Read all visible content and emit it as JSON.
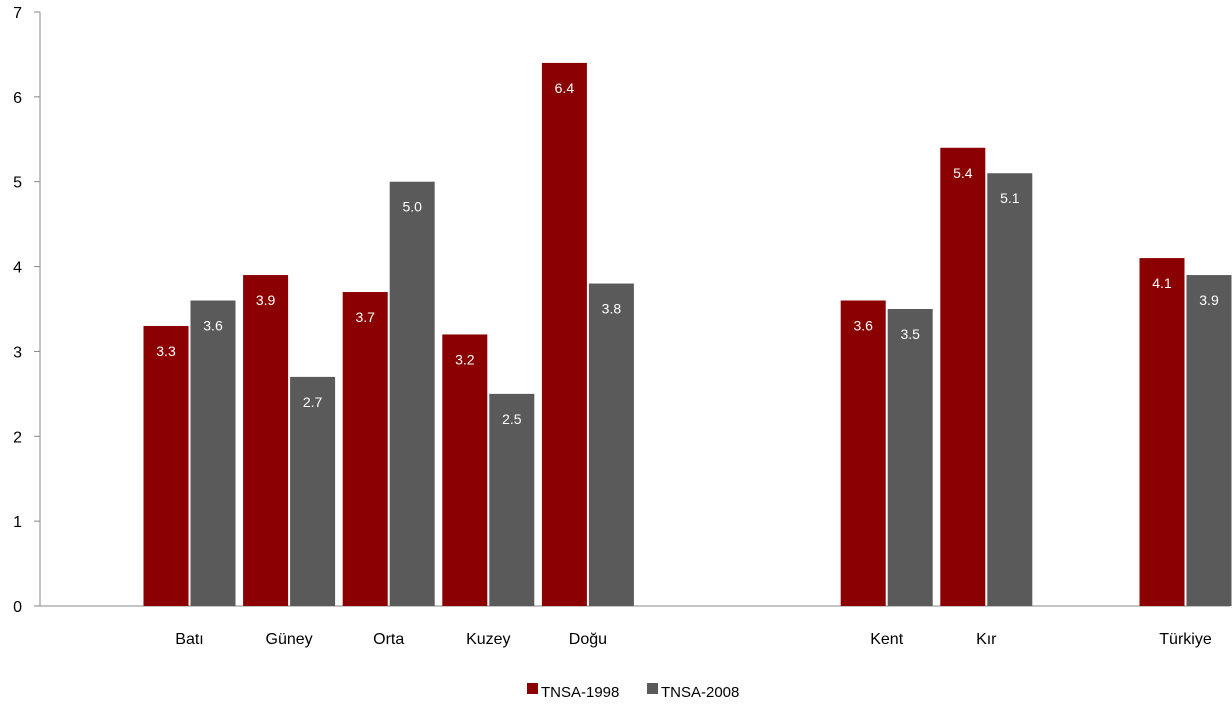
{
  "chart_data": {
    "type": "bar",
    "categories": [
      "Batı",
      "Güney",
      "Orta",
      "Kuzey",
      "Doğu",
      "",
      "",
      "Kent",
      "Kır",
      "",
      "Türkiye"
    ],
    "series": [
      {
        "name": "TNSA-1998",
        "color": "#8b0000",
        "values": [
          3.3,
          3.9,
          3.7,
          3.2,
          6.4,
          null,
          null,
          3.6,
          5.4,
          null,
          4.1
        ]
      },
      {
        "name": "TNSA-2008",
        "color": "#5a5a5a",
        "values": [
          3.6,
          2.7,
          5.0,
          2.5,
          3.8,
          null,
          null,
          3.5,
          5.1,
          null,
          3.9
        ]
      }
    ],
    "ylim": [
      0,
      7
    ],
    "yticks": [
      "0",
      "1",
      "2",
      "3",
      "4",
      "5",
      "6",
      "7"
    ],
    "title": "",
    "xlabel": "",
    "ylabel": "",
    "grid": false,
    "legend_position": "bottom-center"
  }
}
